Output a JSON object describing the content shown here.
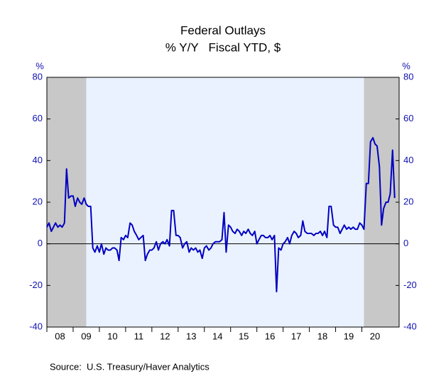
{
  "chart_data": {
    "type": "line",
    "title": "Federal Outlays",
    "subtitle": "% Y/Y   Fiscal YTD, $",
    "ylabel": "%",
    "y2label": "%",
    "source": "Source:  U.S. Treasury/Haver Analytics",
    "color": "#0000c0",
    "plot_background": "#eaf2ff",
    "shade_color": "#c8c8c8",
    "shaded_periods": [
      [
        2008.0,
        2009.5
      ],
      [
        2020.08,
        2021.42
      ]
    ],
    "xlim": [
      2008.0,
      2021.42
    ],
    "xticks": [
      {
        "value": 2008,
        "label": "08"
      },
      {
        "value": 2009,
        "label": "09"
      },
      {
        "value": 2010,
        "label": "10"
      },
      {
        "value": 2011,
        "label": "11"
      },
      {
        "value": 2012,
        "label": "12"
      },
      {
        "value": 2013,
        "label": "13"
      },
      {
        "value": 2014,
        "label": "14"
      },
      {
        "value": 2015,
        "label": "15"
      },
      {
        "value": 2016,
        "label": "16"
      },
      {
        "value": 2017,
        "label": "17"
      },
      {
        "value": 2018,
        "label": "18"
      },
      {
        "value": 2019,
        "label": "19"
      },
      {
        "value": 2020,
        "label": "20"
      }
    ],
    "ylim": [
      -40,
      80
    ],
    "yticks": [
      -40,
      -20,
      0,
      20,
      40,
      60,
      80
    ],
    "y2lim": [
      -40,
      80
    ],
    "y2ticks": [
      -40,
      -20,
      0,
      20,
      40,
      60,
      80
    ],
    "x": [
      2008.0,
      2008.08,
      2008.17,
      2008.25,
      2008.33,
      2008.42,
      2008.5,
      2008.58,
      2008.67,
      2008.75,
      2008.83,
      2008.92,
      2009.0,
      2009.08,
      2009.17,
      2009.25,
      2009.33,
      2009.42,
      2009.5,
      2009.58,
      2009.67,
      2009.75,
      2009.83,
      2009.92,
      2010.0,
      2010.08,
      2010.17,
      2010.25,
      2010.33,
      2010.42,
      2010.5,
      2010.58,
      2010.67,
      2010.75,
      2010.83,
      2010.92,
      2011.0,
      2011.08,
      2011.17,
      2011.25,
      2011.33,
      2011.42,
      2011.5,
      2011.58,
      2011.67,
      2011.75,
      2011.83,
      2011.92,
      2012.0,
      2012.08,
      2012.17,
      2012.25,
      2012.33,
      2012.42,
      2012.5,
      2012.58,
      2012.67,
      2012.75,
      2012.83,
      2012.92,
      2013.0,
      2013.08,
      2013.17,
      2013.25,
      2013.33,
      2013.42,
      2013.5,
      2013.58,
      2013.67,
      2013.75,
      2013.83,
      2013.92,
      2014.0,
      2014.08,
      2014.17,
      2014.25,
      2014.33,
      2014.42,
      2014.5,
      2014.58,
      2014.67,
      2014.75,
      2014.83,
      2014.92,
      2015.0,
      2015.08,
      2015.17,
      2015.25,
      2015.33,
      2015.42,
      2015.5,
      2015.58,
      2015.67,
      2015.75,
      2015.83,
      2015.92,
      2016.0,
      2016.08,
      2016.17,
      2016.25,
      2016.33,
      2016.42,
      2016.5,
      2016.58,
      2016.67,
      2016.75,
      2016.83,
      2016.92,
      2017.0,
      2017.08,
      2017.17,
      2017.25,
      2017.33,
      2017.42,
      2017.5,
      2017.58,
      2017.67,
      2017.75,
      2017.83,
      2017.92,
      2018.0,
      2018.08,
      2018.17,
      2018.25,
      2018.33,
      2018.42,
      2018.5,
      2018.58,
      2018.67,
      2018.75,
      2018.83,
      2018.92,
      2019.0,
      2019.08,
      2019.17,
      2019.25,
      2019.33,
      2019.42,
      2019.5,
      2019.58,
      2019.67,
      2019.75,
      2019.83,
      2019.92,
      2020.0,
      2020.08,
      2020.17,
      2020.25,
      2020.33,
      2020.42,
      2020.5,
      2020.58,
      2020.67,
      2020.75,
      2020.83,
      2020.92,
      2021.0,
      2021.08,
      2021.17,
      2021.25
    ],
    "values": [
      8,
      10,
      6,
      8,
      10,
      8,
      9,
      8,
      10,
      36,
      22,
      23,
      23,
      18,
      22,
      20,
      19,
      22,
      19,
      18,
      18,
      -2,
      -4,
      -1,
      -4,
      0,
      -5,
      -2,
      -3,
      -3,
      -2,
      -2,
      -3,
      -8,
      3,
      2,
      4,
      3,
      10,
      9,
      6,
      4,
      2,
      3,
      4,
      -8,
      -5,
      -3,
      -3,
      -2,
      1,
      -3,
      0,
      1,
      0,
      2,
      -1,
      16,
      16,
      4,
      4,
      3,
      -2,
      0,
      1,
      -4,
      -2,
      -3,
      -2,
      -4,
      -3,
      -7,
      -2,
      -1,
      -3,
      -2,
      0,
      1,
      1,
      1,
      2,
      15,
      -4,
      9,
      8,
      6,
      5,
      7,
      6,
      4,
      6,
      5,
      7,
      5,
      4,
      6,
      0,
      2,
      4,
      4,
      3,
      3,
      4,
      2,
      4,
      -23,
      -2,
      -3,
      0,
      1,
      3,
      0,
      4,
      6,
      5,
      3,
      4,
      11,
      6,
      5,
      5,
      5,
      4,
      5,
      5,
      6,
      4,
      6,
      3,
      18,
      18,
      9,
      8,
      8,
      5,
      7,
      9,
      7,
      8,
      7,
      8,
      7,
      7,
      10,
      9,
      7,
      29,
      29,
      49,
      51,
      48,
      47,
      37,
      9,
      17,
      20,
      20,
      24,
      45,
      22
    ]
  }
}
